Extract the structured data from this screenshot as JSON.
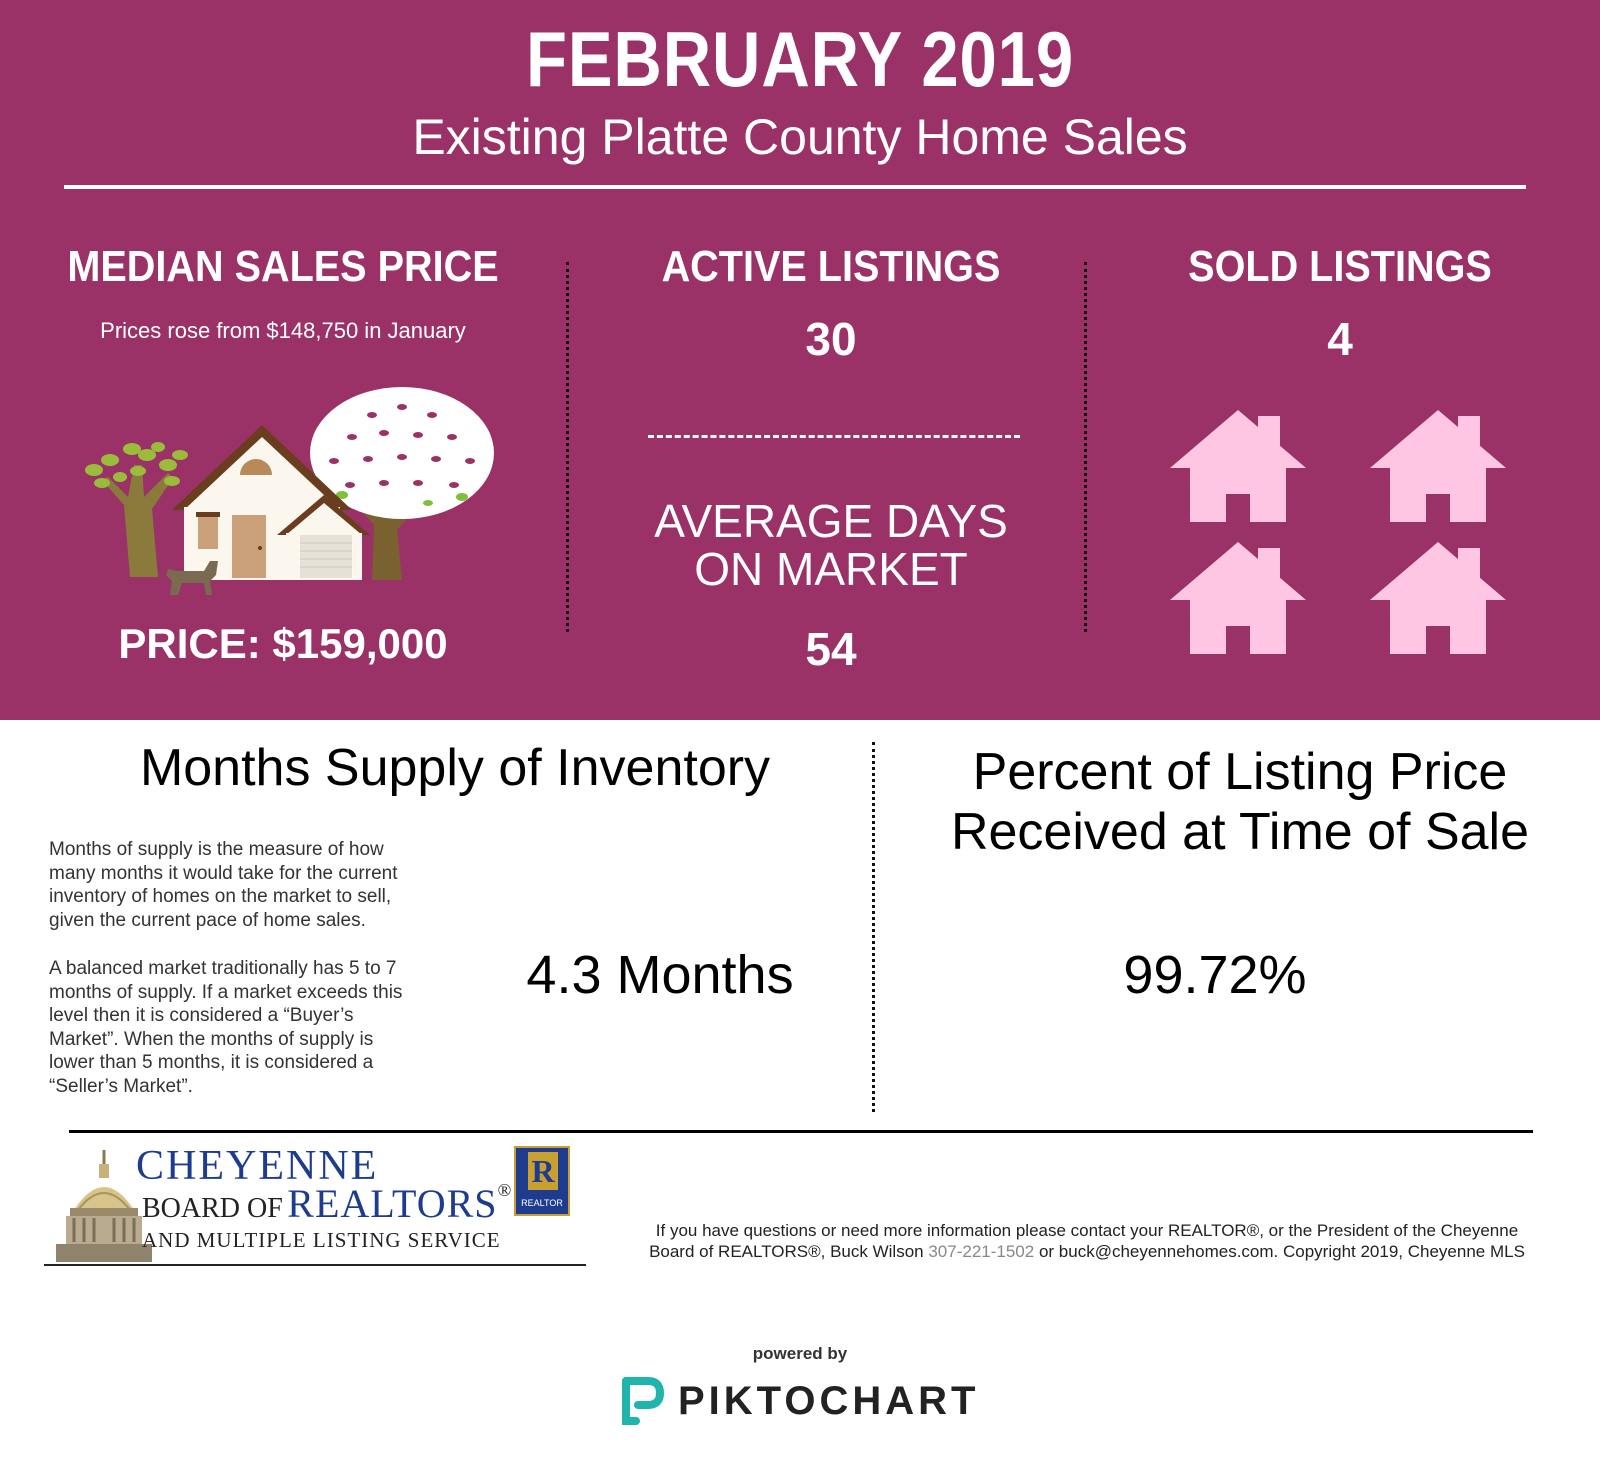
{
  "header": {
    "title": "FEBRUARY 2019",
    "subtitle": "Existing Platte County Home Sales"
  },
  "median": {
    "heading": "MEDIAN SALES PRICE",
    "note": "Prices rose from $148,750 in January",
    "price": "PRICE: $159,000"
  },
  "active": {
    "heading": "ACTIVE LISTINGS",
    "value": "30"
  },
  "days": {
    "heading_line1": "AVERAGE DAYS",
    "heading_line2": "ON MARKET",
    "value": "54"
  },
  "sold": {
    "heading": "SOLD LISTINGS",
    "value": "4"
  },
  "supply": {
    "heading": "Months Supply of Inventory",
    "para1": [
      "Months of supply is the measure of how",
      "many months it would take for the current",
      "inventory of homes on the market to sell,",
      "given the current pace of home sales."
    ],
    "para2": [
      "A balanced market traditionally has 5 to 7",
      "months of supply. If a market exceeds this",
      "level then it is considered a “Buyer’s",
      "Market”. When the months of supply is",
      "lower than 5 months, it is considered a",
      "“Seller’s Market”."
    ],
    "value": "4.3 Months"
  },
  "percent": {
    "heading_line1": "Percent of Listing Price",
    "heading_line2": "Received at Time of Sale",
    "value": "99.72%"
  },
  "logo": {
    "line1": "CHEYENNE",
    "line2a": "BOARD OF",
    "line2b": "REALTORS",
    "reg": "®",
    "line3": "AND MULTIPLE LISTING SERVICE",
    "badge_letter": "R",
    "badge_text": "REALTOR"
  },
  "footer": {
    "line1": "If you have questions or need more information please contact your REALTOR®, or the President of the Cheyenne",
    "line2_pre": "Board of REALTORS®, Buck Wilson ",
    "phone": "307-221-1502",
    "line2_post": " or buck@cheyennehomes.com.  Copyright 2019, Cheyenne MLS"
  },
  "powered": {
    "label": "powered by",
    "brand": "PIKTOCHART"
  },
  "colors": {
    "banner": "#9a3268",
    "house_pink": "#ffc6e4",
    "logo_blue": "#1d3c8f",
    "pikto_teal": "#1fb5ad"
  }
}
